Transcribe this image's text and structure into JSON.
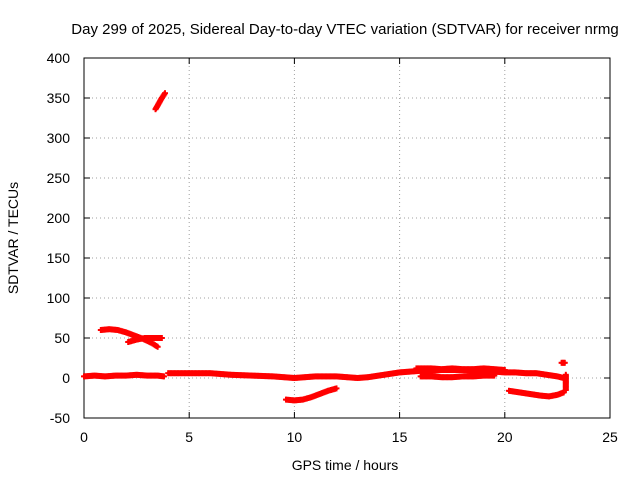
{
  "chart_data": {
    "type": "scatter",
    "title": "Day 299 of 2025, Sidereal Day-to-day VTEC variation (SDTVAR) for receiver nrmg",
    "xlabel": "GPS time / hours",
    "ylabel": "SDTVAR / TECUs",
    "xlim": [
      0,
      25
    ],
    "ylim": [
      -50,
      400
    ],
    "xticks": [
      0,
      5,
      10,
      15,
      20,
      25
    ],
    "yticks": [
      -50,
      0,
      50,
      100,
      150,
      200,
      250,
      300,
      350,
      400
    ],
    "grid": true,
    "marker": "+",
    "series": [
      {
        "name": "SDTVAR",
        "color": "#ff0000",
        "segments": [
          {
            "x": [
              0.0,
              0.5,
              1.0,
              1.5,
              2.0,
              2.5,
              3.0,
              3.5,
              3.8
            ],
            "y": [
              2,
              3,
              2,
              3,
              3,
              4,
              3,
              3,
              2
            ]
          },
          {
            "x": [
              0.8,
              1.2,
              1.6,
              2.0,
              2.4,
              2.8,
              3.2,
              3.5
            ],
            "y": [
              60,
              61,
              60,
              57,
              53,
              49,
              44,
              39
            ]
          },
          {
            "x": [
              2.1,
              2.5,
              2.9,
              3.3,
              3.7
            ],
            "y": [
              45,
              48,
              50,
              50,
              50
            ]
          },
          {
            "x": [
              3.4,
              3.55,
              3.7,
              3.85
            ],
            "y": [
              336,
              343,
              350,
              356
            ]
          },
          {
            "x": [
              4.0,
              5.0,
              6.0,
              7.0,
              8.0,
              9.0,
              9.5,
              10.0,
              10.5,
              11.0,
              11.5,
              12.0,
              12.5,
              13.0,
              13.5,
              14.0,
              14.5,
              15.0,
              15.5,
              16.0,
              16.5,
              17.0,
              17.5,
              18.0,
              18.5,
              19.0,
              19.5,
              20.0,
              20.5,
              21.0,
              21.5,
              22.0,
              22.5,
              22.8
            ],
            "y": [
              6,
              6,
              6,
              4,
              3,
              2,
              1,
              0,
              1,
              2,
              2,
              2,
              1,
              0,
              1,
              3,
              5,
              7,
              8,
              9,
              9,
              10,
              10,
              10,
              9,
              9,
              8,
              7,
              7,
              6,
              6,
              4,
              2,
              0
            ]
          },
          {
            "x": [
              15.8,
              16.5,
              17.0,
              17.5,
              18.0,
              18.5,
              19.0,
              19.5,
              20.0
            ],
            "y": [
              12,
              12,
              11,
              12,
              11,
              11,
              12,
              11,
              10
            ]
          },
          {
            "x": [
              16.0,
              16.5,
              17.0,
              17.5,
              18.0,
              18.5,
              19.0,
              19.5
            ],
            "y": [
              2,
              2,
              1,
              1,
              2,
              2,
              3,
              3
            ]
          },
          {
            "x": [
              9.6,
              10.0,
              10.4,
              10.8,
              11.2,
              11.6,
              12.0
            ],
            "y": [
              -27,
              -28,
              -27,
              -24,
              -20,
              -16,
              -13
            ]
          },
          {
            "x": [
              20.2,
              20.7,
              21.2,
              21.7,
              22.1,
              22.5,
              22.8
            ],
            "y": [
              -16,
              -18,
              -20,
              -22,
              -23,
              -21,
              -18
            ]
          },
          {
            "x": [
              22.7,
              22.85
            ],
            "y": [
              19,
              19
            ]
          },
          {
            "x": [
              22.9,
              22.9,
              22.9,
              22.9
            ],
            "y": [
              -15,
              -8,
              -2,
              4
            ]
          }
        ]
      }
    ]
  }
}
